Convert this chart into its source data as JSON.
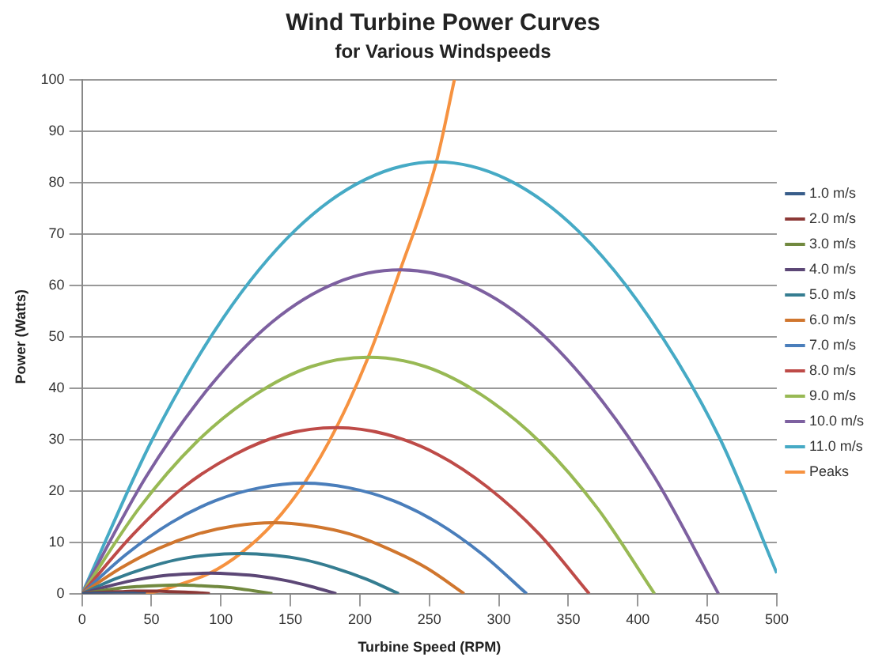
{
  "chart_data": {
    "type": "line",
    "title": "Wind Turbine Power Curves",
    "subtitle": "for Various Windspeeds",
    "xlabel": "Turbine Speed (RPM)",
    "ylabel": "Power (Watts)",
    "xlim": [
      0,
      500
    ],
    "xticks": [
      0,
      50,
      100,
      150,
      200,
      250,
      300,
      350,
      400,
      450,
      500
    ],
    "ylim": [
      0,
      100
    ],
    "yticks": [
      0,
      10,
      20,
      30,
      40,
      50,
      60,
      70,
      80,
      90,
      100
    ],
    "grid": "y",
    "legend": "right",
    "marker": "none",
    "line_style": "solid",
    "series": [
      {
        "name": "1.0 m/s",
        "color": "#385d8a",
        "x": [
          0,
          5,
          9,
          14,
          18,
          23,
          28,
          32,
          37,
          41,
          46
        ],
        "values": [
          0,
          0,
          0.1,
          0.1,
          0.1,
          0.1,
          0.1,
          0.1,
          0.1,
          0,
          0
        ]
      },
      {
        "name": "2.0 m/s",
        "color": "#8c3836",
        "x": [
          0,
          9,
          18,
          28,
          37,
          46,
          55,
          64,
          74,
          83,
          92
        ],
        "values": [
          0,
          0.2,
          0.3,
          0.4,
          0.5,
          0.5,
          0.5,
          0.4,
          0.3,
          0.2,
          0
        ]
      },
      {
        "name": "3.0 m/s",
        "color": "#71893f",
        "x": [
          0,
          14,
          27,
          41,
          55,
          69,
          82,
          96,
          110,
          123,
          137
        ],
        "values": [
          0,
          0.6,
          1.1,
          1.4,
          1.6,
          1.7,
          1.6,
          1.4,
          1.1,
          0.6,
          0
        ]
      },
      {
        "name": "4.0 m/s",
        "color": "#5c4776",
        "x": [
          0,
          18,
          37,
          55,
          73,
          92,
          110,
          128,
          146,
          165,
          183
        ],
        "values": [
          0,
          1.4,
          2.6,
          3.4,
          3.8,
          4,
          3.8,
          3.4,
          2.6,
          1.4,
          0
        ]
      },
      {
        "name": "5.0 m/s",
        "color": "#357d91",
        "x": [
          0,
          23,
          46,
          68,
          91,
          114,
          137,
          160,
          182,
          205,
          228
        ],
        "values": [
          0,
          2.8,
          5,
          6.6,
          7.5,
          7.8,
          7.5,
          6.6,
          5,
          2.8,
          0
        ]
      },
      {
        "name": "6.0 m/s",
        "color": "#d0762e",
        "x": [
          0,
          28,
          55,
          83,
          110,
          138,
          165,
          193,
          220,
          248,
          275
        ],
        "values": [
          0,
          5,
          8.8,
          11.6,
          13.2,
          13.8,
          13.2,
          11.6,
          8.8,
          5,
          0
        ]
      },
      {
        "name": "7.0 m/s",
        "color": "#4a7ebb",
        "x": [
          0,
          32,
          64,
          96,
          128,
          160,
          192,
          224,
          256,
          288,
          320
        ],
        "values": [
          0,
          7.7,
          13.8,
          18.1,
          20.6,
          21.5,
          20.6,
          18.1,
          13.8,
          7.7,
          0
        ]
      },
      {
        "name": "8.0 m/s",
        "color": "#be4b48",
        "x": [
          0,
          37,
          73,
          110,
          146,
          183,
          219,
          256,
          292,
          329,
          365
        ],
        "values": [
          0,
          11.6,
          20.7,
          27.1,
          31,
          32.3,
          31,
          27.1,
          20.7,
          11.6,
          0
        ]
      },
      {
        "name": "9.0 m/s",
        "color": "#98b954",
        "x": [
          0,
          41,
          82,
          124,
          165,
          206,
          247,
          288,
          330,
          371,
          412
        ],
        "values": [
          0,
          16.6,
          29.4,
          38.6,
          44.2,
          46,
          44.2,
          38.6,
          29.4,
          16.6,
          0
        ]
      },
      {
        "name": "10.0 m/s",
        "color": "#7d60a0",
        "x": [
          0,
          46,
          92,
          137,
          183,
          229,
          275,
          321,
          366,
          412,
          458
        ],
        "values": [
          0,
          22.7,
          40.3,
          52.9,
          60.5,
          63,
          60.5,
          52.9,
          40.3,
          22.7,
          0
        ]
      },
      {
        "name": "11.0 m/s",
        "color": "#46aac5",
        "x": [
          0,
          51,
          102,
          153,
          204,
          255,
          306,
          357,
          408,
          459,
          500
        ],
        "values": [
          0,
          30.2,
          53.8,
          70.6,
          80.6,
          84,
          80.6,
          70.6,
          53.8,
          30.2,
          4
        ]
      },
      {
        "name": "Peaks",
        "color": "#f69240",
        "x": [
          0,
          46,
          69,
          92,
          114,
          138,
          160,
          183,
          206,
          229,
          255,
          268
        ],
        "values": [
          0,
          0.1,
          1.7,
          4,
          7.8,
          13.8,
          21.5,
          32.3,
          46,
          63,
          84,
          100
        ]
      }
    ]
  }
}
